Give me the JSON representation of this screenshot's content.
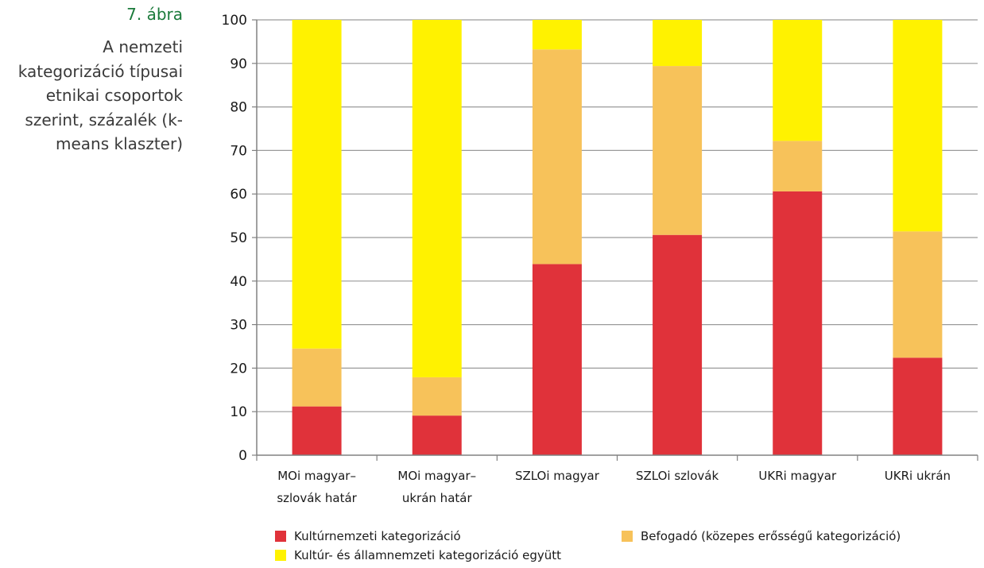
{
  "figure": {
    "label": "7. ábra",
    "title": "A nemzeti kategorizáció típusai etnikai csoportok szerint, százalék (k-means klaszter)"
  },
  "colors": {
    "kultur": "#e0323a",
    "befogado": "#f7c25a",
    "egyutt": "#fff200",
    "grid": "#9a9a9a",
    "axis": "#808080"
  },
  "chart_data": {
    "type": "bar",
    "stacked": true,
    "categories": [
      [
        "MOi magyar–",
        "szlovák határ"
      ],
      [
        "MOi magyar–",
        "ukrán határ"
      ],
      [
        "SZLOi magyar"
      ],
      [
        "SZLOi szlovák"
      ],
      [
        "UKRi magyar"
      ],
      [
        "UKRi ukrán"
      ]
    ],
    "series": [
      {
        "name": "Kultúrnemzeti kategorizáció",
        "color_key": "kultur",
        "values": [
          11.2,
          9.1,
          43.9,
          50.6,
          60.6,
          22.4
        ]
      },
      {
        "name": "Befogadó (közepes erősségű kategorizáció)",
        "color_key": "befogado",
        "values": [
          13.3,
          8.8,
          49.3,
          38.8,
          11.6,
          29.0
        ]
      },
      {
        "name": "Kultúr- és államnemzeti kategorizáció együtt",
        "color_key": "egyutt",
        "values": [
          75.5,
          82.1,
          6.8,
          10.6,
          27.8,
          48.6
        ]
      }
    ],
    "ylim": [
      0,
      100
    ],
    "yticks": [
      0,
      10,
      20,
      30,
      40,
      50,
      60,
      70,
      80,
      90,
      100
    ],
    "grid": true,
    "legend_position": "bottom"
  }
}
